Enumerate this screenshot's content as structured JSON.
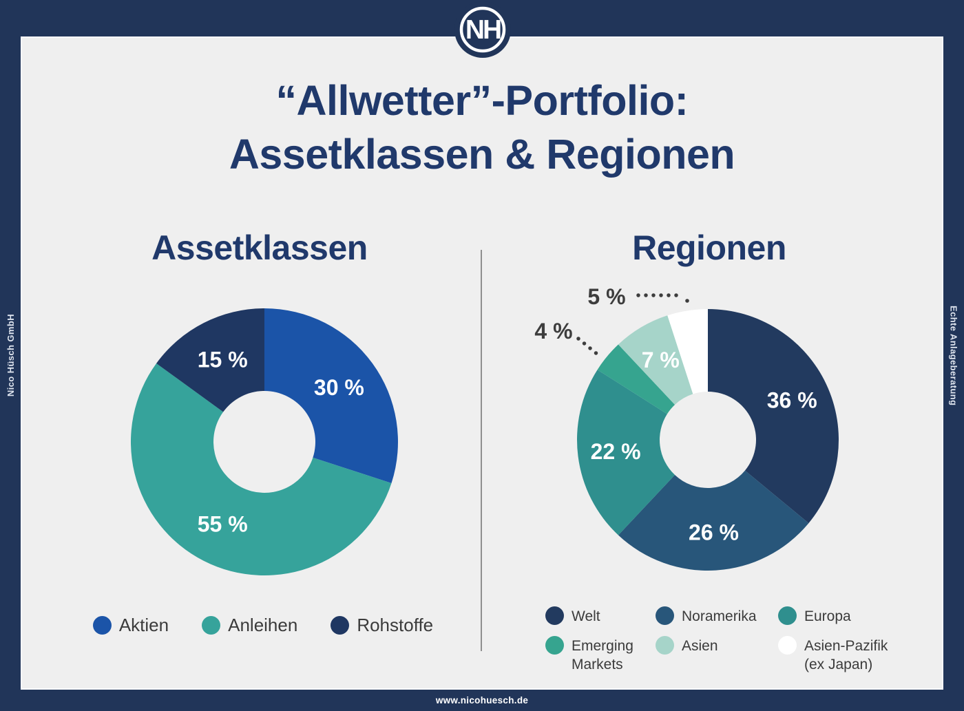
{
  "page": {
    "frame_color": "#213559",
    "background_color": "#efefef",
    "title_color": "#20396b",
    "divider_color": "#8f8f8f",
    "callout_text_color": "#3d3d3d",
    "legend_text_color": "#3b3b3b"
  },
  "header": {
    "logo_monogram": "NH",
    "title_line1": "“Allwetter”-Portfolio:",
    "title_line2": "Assetklassen & Regionen"
  },
  "sidebars": {
    "left_text": "Nico Hüsch GmbH",
    "right_text": "Echte Anlageberatung"
  },
  "footer": {
    "url": "www.nicohuesch.de"
  },
  "chart_data": [
    {
      "type": "pie",
      "donut": true,
      "title": "Assetklassen",
      "start_angle_deg": 0,
      "direction": "clockwise",
      "categories": [
        "Aktien",
        "Anleihen",
        "Rohstoffe"
      ],
      "values": [
        30,
        55,
        15
      ],
      "labels": [
        "30 %",
        "55 %",
        "15 %"
      ],
      "colors": [
        "#1b54a8",
        "#36a39b",
        "#1f3762"
      ],
      "label_placement": [
        "inside",
        "inside",
        "inside"
      ],
      "legend_position": "bottom"
    },
    {
      "type": "pie",
      "donut": true,
      "title": "Regionen",
      "start_angle_deg": 0,
      "direction": "clockwise",
      "categories": [
        "Welt",
        "Noramerika",
        "Europa",
        "Emerging Markets",
        "Asien",
        "Asien-Pazifik (ex Japan)"
      ],
      "values": [
        36,
        26,
        22,
        4,
        7,
        5
      ],
      "labels": [
        "36 %",
        "26 %",
        "22 %",
        "4 %",
        "7 %",
        "5 %"
      ],
      "colors": [
        "#223a5f",
        "#28567a",
        "#2f8f8e",
        "#36a48f",
        "#a6d4c9",
        "#ffffff"
      ],
      "label_placement": [
        "inside",
        "inside",
        "inside",
        "outside",
        "inside",
        "outside"
      ],
      "legend_position": "bottom"
    }
  ]
}
